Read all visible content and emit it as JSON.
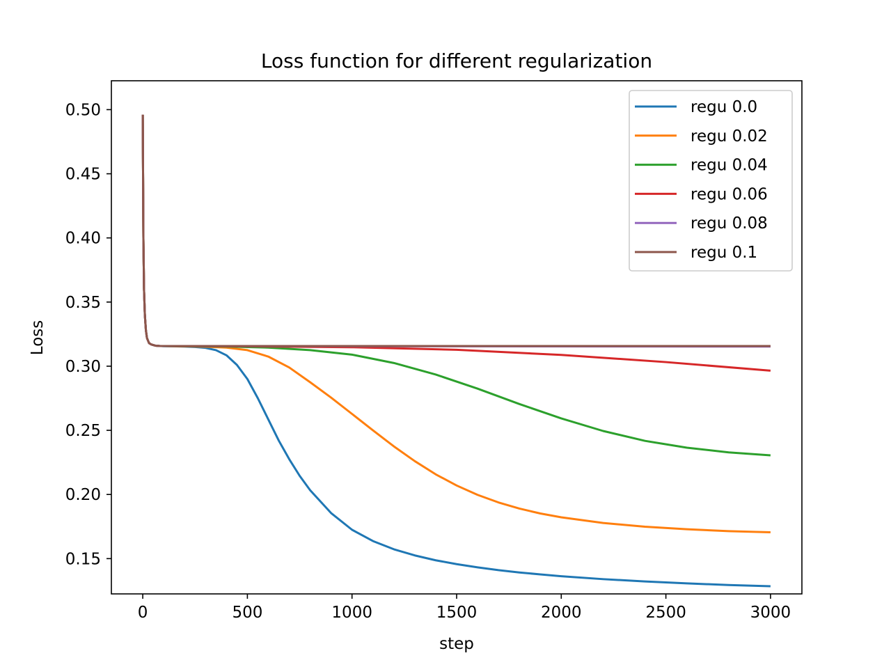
{
  "chart_data": {
    "type": "line",
    "title": "Loss function for different regularization",
    "xlabel": "step",
    "ylabel": "Loss",
    "xlim": [
      -150,
      3150
    ],
    "ylim": [
      0.1225,
      0.5225
    ],
    "xticks": [
      0,
      500,
      1000,
      1500,
      2000,
      2500,
      3000
    ],
    "yticks": [
      0.15,
      0.2,
      0.25,
      0.3,
      0.35,
      0.4,
      0.45,
      0.5
    ],
    "grid": false,
    "legend_position": "top-right",
    "series": [
      {
        "name": "regu 0.0",
        "color": "#1f77b4",
        "x": [
          0,
          3,
          6,
          10,
          15,
          20,
          30,
          40,
          50,
          60,
          80,
          100,
          150,
          200,
          250,
          300,
          350,
          400,
          450,
          500,
          550,
          600,
          650,
          700,
          750,
          800,
          900,
          1000,
          1100,
          1200,
          1300,
          1400,
          1500,
          1600,
          1700,
          1800,
          1900,
          2000,
          2200,
          2400,
          2600,
          2800,
          3000
        ],
        "y": [
          0.496,
          0.4,
          0.36,
          0.34,
          0.328,
          0.322,
          0.318,
          0.317,
          0.3165,
          0.316,
          0.3158,
          0.3156,
          0.3155,
          0.3153,
          0.315,
          0.3143,
          0.3125,
          0.3085,
          0.301,
          0.29,
          0.275,
          0.2585,
          0.242,
          0.2275,
          0.2145,
          0.2033,
          0.1855,
          0.1725,
          0.1637,
          0.1573,
          0.1525,
          0.1487,
          0.1457,
          0.1432,
          0.141,
          0.1392,
          0.1377,
          0.1363,
          0.134,
          0.1322,
          0.1307,
          0.1294,
          0.1285
        ]
      },
      {
        "name": "regu 0.02",
        "color": "#ff7f0e",
        "x": [
          0,
          3,
          6,
          10,
          15,
          20,
          30,
          40,
          50,
          60,
          80,
          100,
          200,
          300,
          400,
          500,
          600,
          700,
          800,
          900,
          1000,
          1100,
          1200,
          1300,
          1400,
          1500,
          1600,
          1700,
          1800,
          1900,
          2000,
          2200,
          2400,
          2600,
          2800,
          3000
        ],
        "y": [
          0.496,
          0.4,
          0.36,
          0.34,
          0.328,
          0.322,
          0.318,
          0.317,
          0.3165,
          0.316,
          0.3158,
          0.3157,
          0.3155,
          0.3152,
          0.3145,
          0.3125,
          0.3075,
          0.299,
          0.2875,
          0.2755,
          0.2628,
          0.25,
          0.2375,
          0.226,
          0.2157,
          0.207,
          0.1997,
          0.1938,
          0.189,
          0.1852,
          0.1822,
          0.1778,
          0.1749,
          0.1729,
          0.1714,
          0.1705
        ]
      },
      {
        "name": "regu 0.04",
        "color": "#2ca02c",
        "x": [
          0,
          3,
          6,
          10,
          15,
          20,
          30,
          40,
          50,
          60,
          80,
          100,
          200,
          400,
          600,
          800,
          1000,
          1200,
          1400,
          1600,
          1800,
          2000,
          2200,
          2400,
          2600,
          2800,
          3000
        ],
        "y": [
          0.496,
          0.4,
          0.36,
          0.34,
          0.328,
          0.322,
          0.318,
          0.317,
          0.3165,
          0.316,
          0.3158,
          0.3157,
          0.3156,
          0.3153,
          0.3145,
          0.3125,
          0.309,
          0.3025,
          0.2935,
          0.2825,
          0.2705,
          0.2593,
          0.2495,
          0.2418,
          0.2365,
          0.2328,
          0.2305
        ]
      },
      {
        "name": "regu 0.06",
        "color": "#d62728",
        "x": [
          0,
          3,
          6,
          10,
          15,
          20,
          30,
          40,
          50,
          60,
          80,
          100,
          500,
          1000,
          1500,
          2000,
          2500,
          3000
        ],
        "y": [
          0.496,
          0.4,
          0.36,
          0.34,
          0.328,
          0.322,
          0.318,
          0.317,
          0.3165,
          0.316,
          0.3158,
          0.3157,
          0.3155,
          0.3148,
          0.3128,
          0.3088,
          0.3032,
          0.2965
        ]
      },
      {
        "name": "regu 0.08",
        "color": "#9467bd",
        "x": [
          0,
          3,
          6,
          10,
          15,
          20,
          30,
          40,
          50,
          60,
          80,
          100,
          3000
        ],
        "y": [
          0.496,
          0.4,
          0.36,
          0.34,
          0.328,
          0.322,
          0.318,
          0.317,
          0.3165,
          0.316,
          0.3158,
          0.3157,
          0.3153
        ]
      },
      {
        "name": "regu 0.1",
        "color": "#8c564b",
        "x": [
          0,
          3,
          6,
          10,
          15,
          20,
          30,
          40,
          50,
          60,
          80,
          100,
          3000
        ],
        "y": [
          0.496,
          0.4,
          0.36,
          0.34,
          0.328,
          0.322,
          0.318,
          0.317,
          0.3165,
          0.316,
          0.3158,
          0.3157,
          0.3157
        ]
      }
    ]
  }
}
